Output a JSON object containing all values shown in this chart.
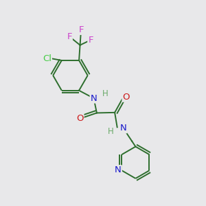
{
  "bg_color": "#e8e8ea",
  "bond_color": "#2d6e2d",
  "bond_width": 1.4,
  "atom_colors": {
    "C": "#2d6e2d",
    "N": "#1a1acc",
    "O": "#cc1a1a",
    "F": "#cc44cc",
    "Cl": "#44cc44",
    "H": "#6aaa6a"
  },
  "figsize": [
    3.0,
    3.0
  ],
  "dpi": 100
}
